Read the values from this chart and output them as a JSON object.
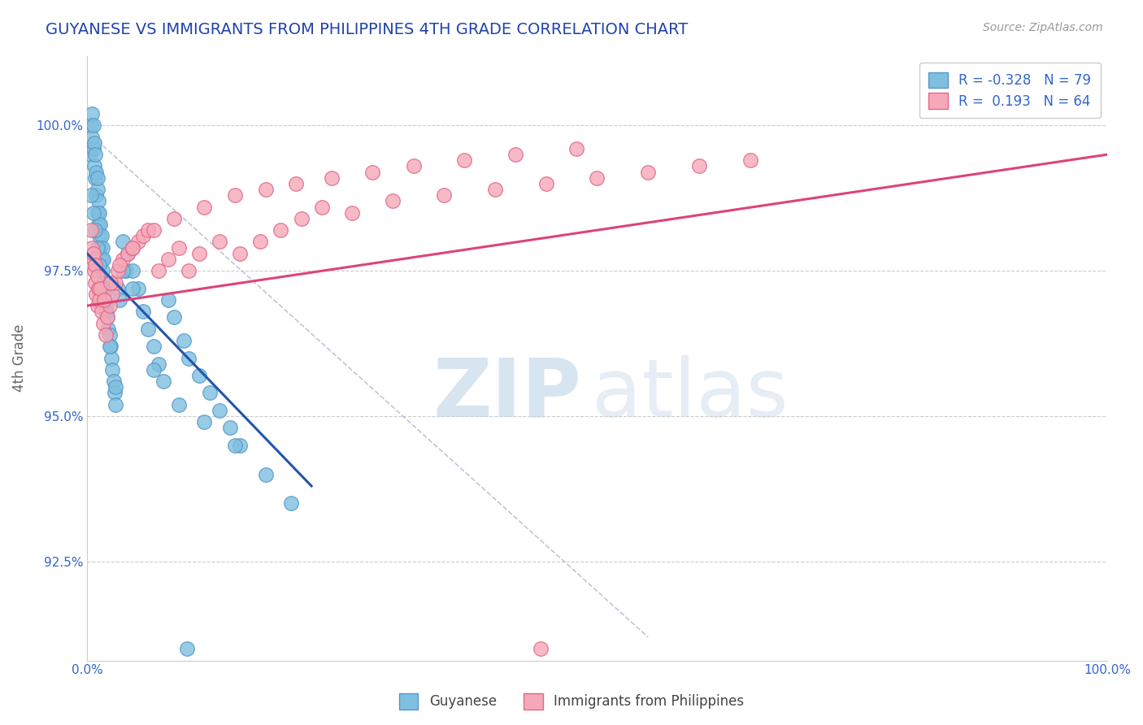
{
  "title": "GUYANESE VS IMMIGRANTS FROM PHILIPPINES 4TH GRADE CORRELATION CHART",
  "source_text": "Source: ZipAtlas.com",
  "ylabel": "4th Grade",
  "yticks": [
    92.5,
    95.0,
    97.5,
    100.0
  ],
  "ytick_labels": [
    "92.5%",
    "95.0%",
    "97.5%",
    "100.0%"
  ],
  "xlim": [
    0.0,
    100.0
  ],
  "ylim": [
    90.8,
    101.2
  ],
  "blue_color": "#7fbfdf",
  "pink_color": "#f5a8b8",
  "blue_edge": "#5599c8",
  "pink_edge": "#e06888",
  "blue_line_color": "#2255aa",
  "pink_line_color": "#dd4477",
  "blue_line_x": [
    0.0,
    22.0
  ],
  "blue_line_y": [
    97.8,
    93.8
  ],
  "pink_line_x": [
    0.0,
    100.0
  ],
  "pink_line_y": [
    96.9,
    99.5
  ],
  "dash_line_x": [
    0.0,
    55.0
  ],
  "dash_line_y": [
    99.9,
    91.2
  ],
  "watermark_zip_color": "#bdd5e8",
  "watermark_atlas_color": "#c8d8e8",
  "legend_blue_r": "-0.328",
  "legend_blue_n": "79",
  "legend_pink_r": "0.193",
  "legend_pink_n": "64",
  "blue_x": [
    0.3,
    0.4,
    0.5,
    0.5,
    0.6,
    0.6,
    0.7,
    0.7,
    0.8,
    0.8,
    0.9,
    0.9,
    1.0,
    1.0,
    1.0,
    1.1,
    1.1,
    1.2,
    1.2,
    1.3,
    1.3,
    1.4,
    1.4,
    1.5,
    1.5,
    1.6,
    1.6,
    1.7,
    1.8,
    1.9,
    2.0,
    2.0,
    2.1,
    2.2,
    2.3,
    2.4,
    2.5,
    2.6,
    2.7,
    2.8,
    3.0,
    3.2,
    3.5,
    3.8,
    4.0,
    4.5,
    5.0,
    5.5,
    6.0,
    6.5,
    7.0,
    7.5,
    8.0,
    8.5,
    9.5,
    10.0,
    11.0,
    12.0,
    13.0,
    14.0,
    15.0,
    0.4,
    0.6,
    0.8,
    1.0,
    1.2,
    1.5,
    1.8,
    2.2,
    2.8,
    3.5,
    4.5,
    6.5,
    9.0,
    11.5,
    14.5,
    17.5,
    20.0,
    9.8
  ],
  "blue_y": [
    99.5,
    100.0,
    99.8,
    100.2,
    99.6,
    100.0,
    99.3,
    99.7,
    99.1,
    99.5,
    98.8,
    99.2,
    98.5,
    98.9,
    99.1,
    98.3,
    98.7,
    98.1,
    98.5,
    97.9,
    98.3,
    97.7,
    98.1,
    97.5,
    97.9,
    97.3,
    97.7,
    97.1,
    96.9,
    96.8,
    96.7,
    97.2,
    96.5,
    96.4,
    96.2,
    96.0,
    95.8,
    95.6,
    95.4,
    95.2,
    97.2,
    97.0,
    98.0,
    97.5,
    97.8,
    97.5,
    97.2,
    96.8,
    96.5,
    96.2,
    95.9,
    95.6,
    97.0,
    96.7,
    96.3,
    96.0,
    95.7,
    95.4,
    95.1,
    94.8,
    94.5,
    98.8,
    98.5,
    98.2,
    97.9,
    97.6,
    97.2,
    96.8,
    96.2,
    95.5,
    97.5,
    97.2,
    95.8,
    95.2,
    94.9,
    94.5,
    94.0,
    93.5,
    91.0
  ],
  "pink_x": [
    0.4,
    0.5,
    0.6,
    0.7,
    0.8,
    0.9,
    1.0,
    1.1,
    1.2,
    1.4,
    1.6,
    1.8,
    2.0,
    2.2,
    2.5,
    2.8,
    3.0,
    3.5,
    4.0,
    4.5,
    5.0,
    5.5,
    6.0,
    7.0,
    8.0,
    9.0,
    10.0,
    11.0,
    13.0,
    15.0,
    17.0,
    19.0,
    21.0,
    23.0,
    26.0,
    30.0,
    35.0,
    40.0,
    45.0,
    50.0,
    55.0,
    60.0,
    65.0,
    0.6,
    0.8,
    1.0,
    1.3,
    1.7,
    2.3,
    3.2,
    4.5,
    6.5,
    8.5,
    11.5,
    14.5,
    17.5,
    20.5,
    24.0,
    28.0,
    32.0,
    37.0,
    42.0,
    48.0,
    44.5
  ],
  "pink_y": [
    98.2,
    97.9,
    97.7,
    97.5,
    97.3,
    97.1,
    96.9,
    97.2,
    97.0,
    96.8,
    96.6,
    96.4,
    96.7,
    96.9,
    97.1,
    97.3,
    97.5,
    97.7,
    97.8,
    97.9,
    98.0,
    98.1,
    98.2,
    97.5,
    97.7,
    97.9,
    97.5,
    97.8,
    98.0,
    97.8,
    98.0,
    98.2,
    98.4,
    98.6,
    98.5,
    98.7,
    98.8,
    98.9,
    99.0,
    99.1,
    99.2,
    99.3,
    99.4,
    97.8,
    97.6,
    97.4,
    97.2,
    97.0,
    97.3,
    97.6,
    97.9,
    98.2,
    98.4,
    98.6,
    98.8,
    98.9,
    99.0,
    99.1,
    99.2,
    99.3,
    99.4,
    99.5,
    99.6,
    91.0
  ]
}
